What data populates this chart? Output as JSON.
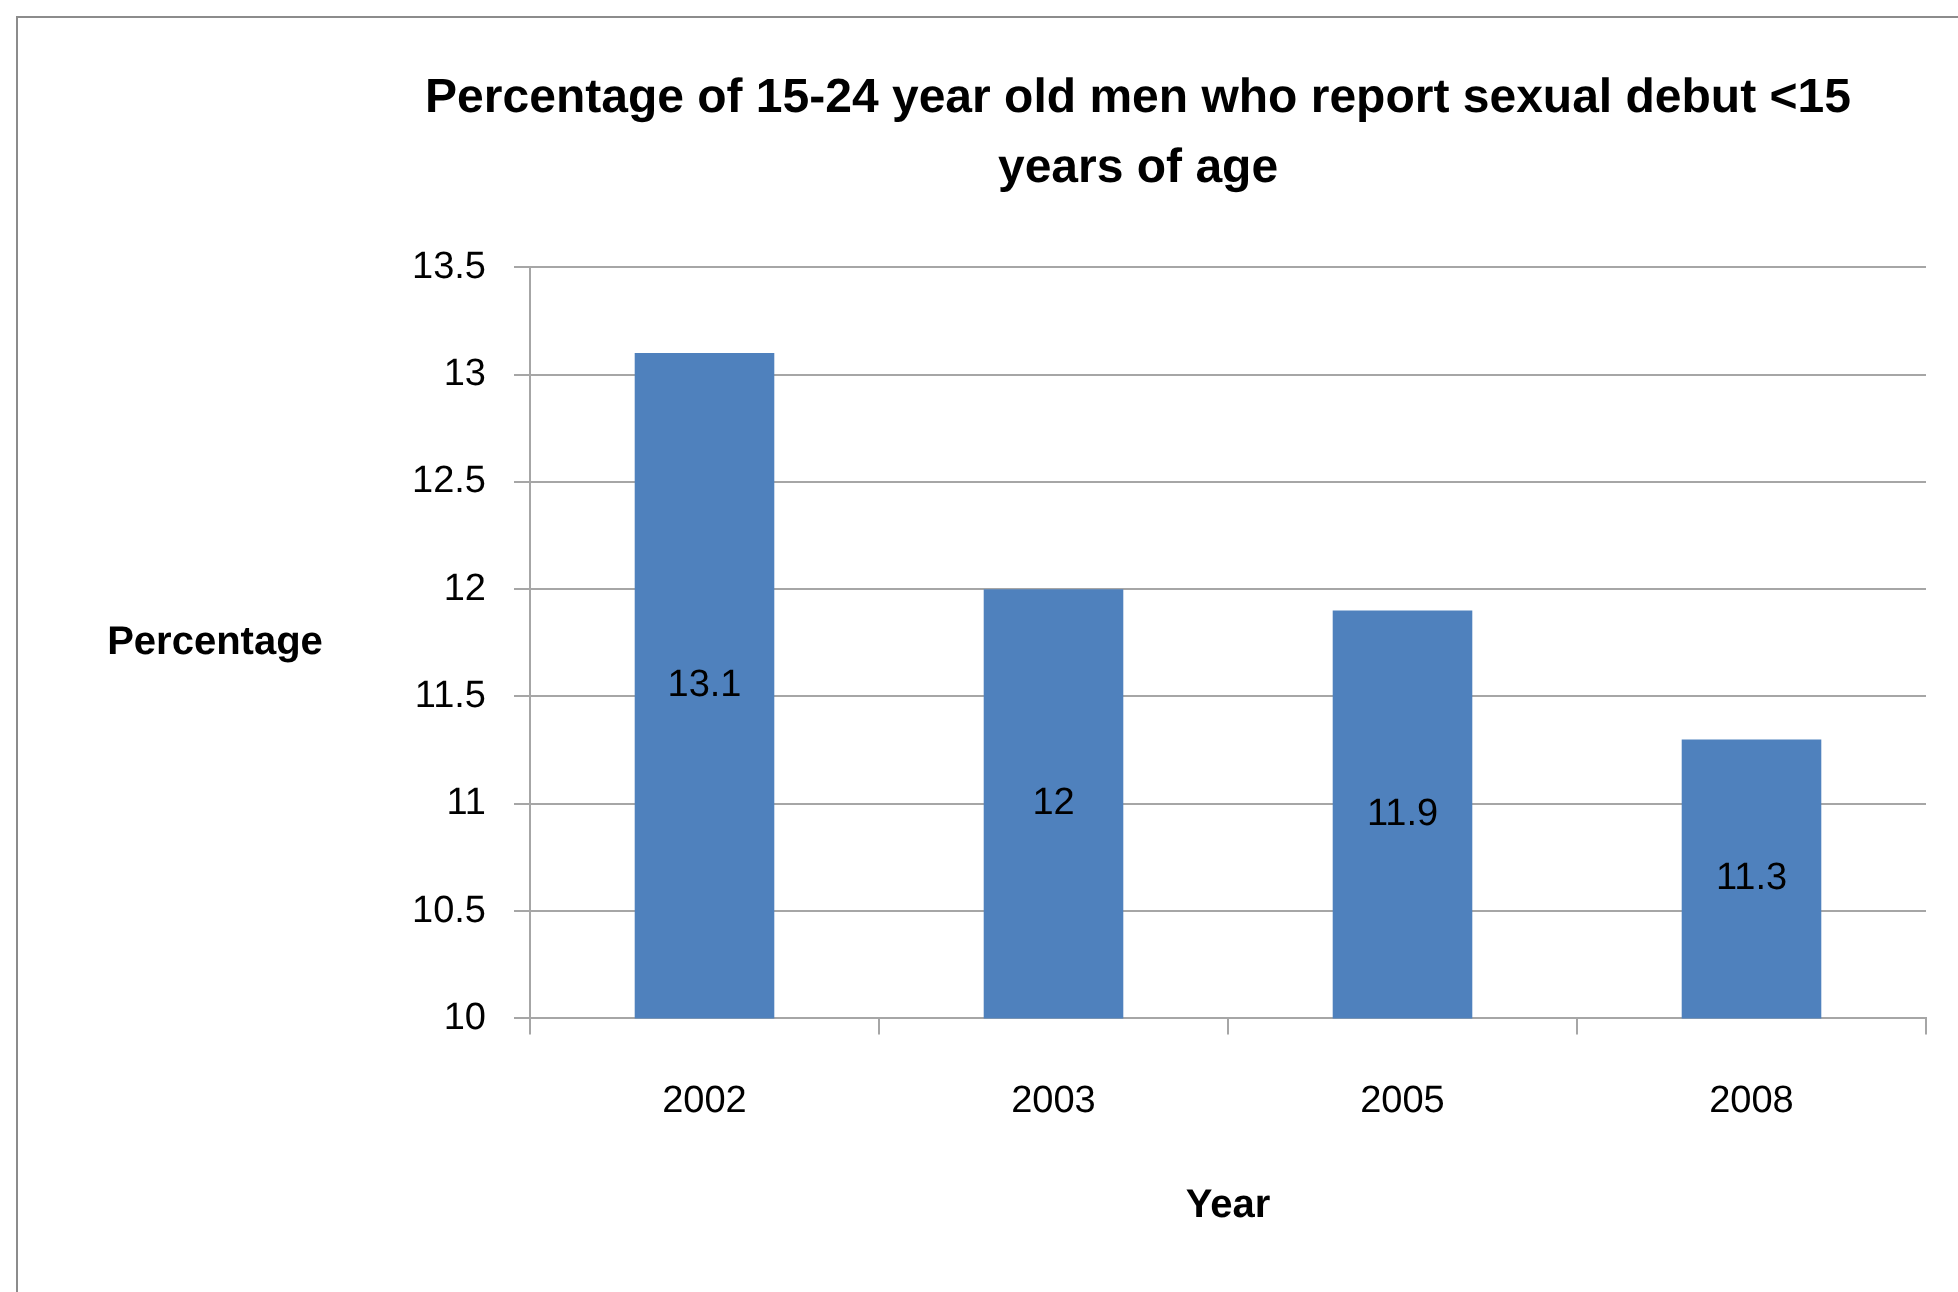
{
  "chart_data": {
    "type": "bar",
    "title": "Percentage of 15-24 year old men who report sexual debut <15 years of age",
    "xlabel": "Year",
    "ylabel": "Percentage",
    "categories": [
      "2002",
      "2003",
      "2005",
      "2008"
    ],
    "values": [
      13.1,
      12,
      11.9,
      11.3
    ],
    "color": "#4f81bd",
    "ylim": [
      10,
      13.5
    ],
    "yticks": [
      10,
      10.5,
      11,
      11.5,
      12,
      12.5,
      13,
      13.5
    ],
    "grid": "y",
    "data_labels": true,
    "legend": false
  }
}
